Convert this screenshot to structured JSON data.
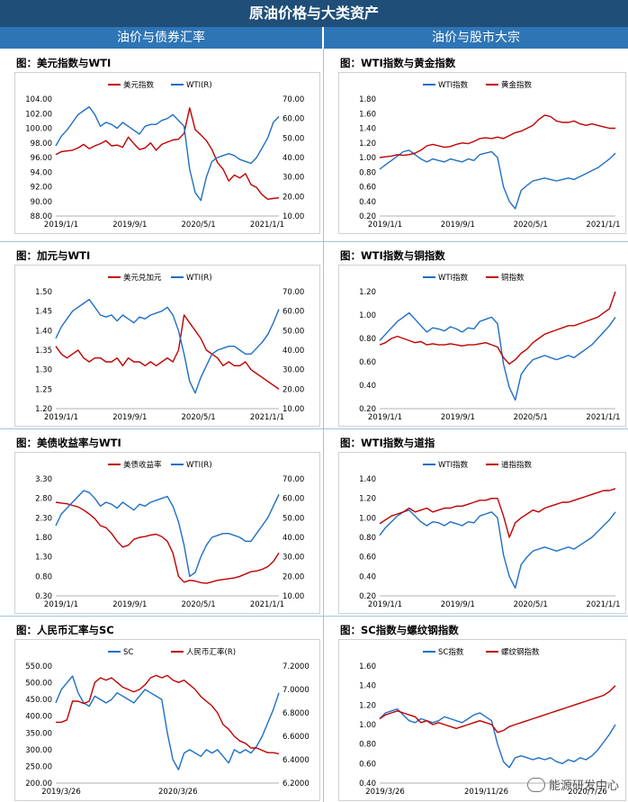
{
  "banner": "原油价格与大类资产",
  "sub_left": "油价与债券汇率",
  "sub_right": "油价与股市大宗",
  "watermark": "能源研发中心",
  "colors": {
    "blue": "#1f6fc5",
    "red": "#c00000"
  },
  "chart_data": [
    {
      "id": "c1",
      "type": "line",
      "title": "图：美元指数与WTI",
      "legend": [
        "美元指数",
        "WTI(R)"
      ],
      "left_ticks": [
        "104.00",
        "102.00",
        "100.00",
        "98.00",
        "96.00",
        "94.00",
        "92.00",
        "90.00",
        "88.00"
      ],
      "right_ticks": [
        "70.00",
        "60.00",
        "50.00",
        "40.00",
        "30.00",
        "20.00",
        "10.00"
      ],
      "x_ticks": [
        "2019/1/1",
        "2019/9/1",
        "2020/5/1",
        "2021/1/1"
      ],
      "ylim": [
        88,
        104
      ],
      "y2lim": [
        10,
        70
      ],
      "series": [
        {
          "name": "美元指数",
          "axis": "left",
          "color": "red",
          "values": [
            96.4,
            96.8,
            96.9,
            97.0,
            97.3,
            97.8,
            97.2,
            97.6,
            97.9,
            98.3,
            97.6,
            97.7,
            97.4,
            98.8,
            97.9,
            97.1,
            97.3,
            98.0,
            97.0,
            97.8,
            98.1,
            98.4,
            98.5,
            99.3,
            102.8,
            99.8,
            99.1,
            98.3,
            97.1,
            95.3,
            94.4,
            92.8,
            93.6,
            93.2,
            93.8,
            92.3,
            91.9,
            90.9,
            90.3,
            90.4,
            90.5
          ]
        },
        {
          "name": "WTI(R)",
          "axis": "right",
          "color": "blue",
          "values": [
            46,
            51,
            54,
            58,
            62,
            64,
            66,
            62,
            56,
            58,
            57,
            55,
            58,
            56,
            54,
            52,
            56,
            57,
            57,
            59,
            60,
            62,
            59,
            56,
            34,
            22,
            18,
            30,
            38,
            40,
            41,
            42,
            41,
            39,
            38,
            37,
            40,
            45,
            50,
            58,
            61
          ]
        }
      ]
    },
    {
      "id": "c2",
      "type": "line",
      "title": "图：WTI指数与黄金指数",
      "legend": [
        "WTI指数",
        "黄金指数"
      ],
      "left_ticks": [
        "1.80",
        "1.60",
        "1.40",
        "1.20",
        "1.00",
        "0.80",
        "0.60",
        "0.40",
        "0.20"
      ],
      "right_ticks": [],
      "x_ticks": [
        "2019/1/1",
        "2019/9/1",
        "2020/5/1",
        "2021/1/1"
      ],
      "ylim": [
        0.2,
        1.8
      ],
      "y2lim": null,
      "series": [
        {
          "name": "WTI指数",
          "axis": "left",
          "color": "blue",
          "values": [
            0.84,
            0.9,
            0.96,
            1.02,
            1.08,
            1.1,
            1.04,
            0.98,
            0.94,
            0.98,
            0.96,
            0.94,
            0.98,
            0.96,
            0.94,
            0.98,
            0.96,
            1.04,
            1.06,
            1.08,
            1.0,
            0.6,
            0.4,
            0.3,
            0.55,
            0.62,
            0.68,
            0.7,
            0.72,
            0.7,
            0.68,
            0.7,
            0.72,
            0.7,
            0.74,
            0.78,
            0.82,
            0.86,
            0.92,
            0.98,
            1.06
          ]
        },
        {
          "name": "黄金指数",
          "axis": "left",
          "color": "red",
          "values": [
            1.0,
            1.01,
            1.02,
            1.04,
            1.03,
            1.04,
            1.06,
            1.1,
            1.16,
            1.18,
            1.16,
            1.14,
            1.15,
            1.18,
            1.2,
            1.19,
            1.22,
            1.26,
            1.27,
            1.26,
            1.28,
            1.26,
            1.3,
            1.34,
            1.36,
            1.4,
            1.44,
            1.52,
            1.58,
            1.56,
            1.5,
            1.48,
            1.48,
            1.5,
            1.46,
            1.44,
            1.46,
            1.44,
            1.42,
            1.4,
            1.4
          ]
        }
      ]
    },
    {
      "id": "c3",
      "type": "line",
      "title": "图：加元与WTI",
      "legend": [
        "美元兑加元",
        "WTI(R)"
      ],
      "left_ticks": [
        "1.50",
        "1.45",
        "1.40",
        "1.35",
        "1.30",
        "1.25",
        "1.20"
      ],
      "right_ticks": [
        "70.00",
        "60.00",
        "50.00",
        "40.00",
        "30.00",
        "20.00",
        "10.00"
      ],
      "x_ticks": [
        "2019/1/1",
        "2019/9/1",
        "2020/5/1",
        "2021/1/1"
      ],
      "ylim": [
        1.2,
        1.5
      ],
      "y2lim": [
        10,
        70
      ],
      "series": [
        {
          "name": "美元兑加元",
          "axis": "left",
          "color": "red",
          "values": [
            1.36,
            1.34,
            1.33,
            1.34,
            1.35,
            1.33,
            1.32,
            1.33,
            1.33,
            1.32,
            1.32,
            1.33,
            1.31,
            1.33,
            1.32,
            1.32,
            1.31,
            1.32,
            1.31,
            1.32,
            1.33,
            1.32,
            1.35,
            1.44,
            1.42,
            1.4,
            1.38,
            1.35,
            1.34,
            1.33,
            1.31,
            1.32,
            1.31,
            1.31,
            1.32,
            1.3,
            1.29,
            1.28,
            1.27,
            1.26,
            1.25
          ]
        },
        {
          "name": "WTI(R)",
          "axis": "right",
          "color": "blue",
          "values": [
            46,
            52,
            56,
            60,
            62,
            64,
            66,
            62,
            58,
            57,
            58,
            55,
            58,
            56,
            54,
            57,
            56,
            58,
            59,
            60,
            62,
            58,
            50,
            38,
            24,
            18,
            26,
            32,
            38,
            40,
            41,
            42,
            42,
            40,
            38,
            38,
            41,
            44,
            48,
            54,
            61
          ]
        }
      ]
    },
    {
      "id": "c4",
      "type": "line",
      "title": "图：WTI指数与铜指数",
      "legend": [
        "WTI指数",
        "铜指数"
      ],
      "left_ticks": [
        "1.20",
        "1.00",
        "0.80",
        "0.60",
        "0.40",
        "0.20"
      ],
      "right_ticks": [],
      "x_ticks": [
        "2019/1/1",
        "2019/9/1",
        "2020/5/1",
        "2021/1/1"
      ],
      "ylim": [
        0.2,
        1.3
      ],
      "y2lim": null,
      "series": [
        {
          "name": "WTI指数",
          "axis": "left",
          "color": "blue",
          "values": [
            0.84,
            0.9,
            0.96,
            1.02,
            1.06,
            1.1,
            1.04,
            0.98,
            0.92,
            0.96,
            0.95,
            0.93,
            0.97,
            0.95,
            0.92,
            0.96,
            0.95,
            1.02,
            1.04,
            1.06,
            1.0,
            0.62,
            0.4,
            0.28,
            0.52,
            0.6,
            0.66,
            0.68,
            0.7,
            0.68,
            0.66,
            0.68,
            0.7,
            0.68,
            0.72,
            0.76,
            0.8,
            0.86,
            0.92,
            0.98,
            1.06
          ]
        },
        {
          "name": "铜指数",
          "axis": "left",
          "color": "red",
          "values": [
            0.8,
            0.82,
            0.86,
            0.88,
            0.86,
            0.84,
            0.82,
            0.83,
            0.8,
            0.81,
            0.8,
            0.8,
            0.81,
            0.8,
            0.79,
            0.8,
            0.8,
            0.81,
            0.82,
            0.8,
            0.78,
            0.68,
            0.62,
            0.66,
            0.72,
            0.76,
            0.82,
            0.86,
            0.9,
            0.92,
            0.94,
            0.96,
            0.98,
            0.98,
            1.0,
            1.02,
            1.04,
            1.06,
            1.1,
            1.14,
            1.3
          ]
        }
      ]
    },
    {
      "id": "c5",
      "type": "line",
      "title": "图：美债收益率与WTI",
      "legend": [
        "美债收益率",
        "WTI(R)"
      ],
      "left_ticks": [
        "3.30",
        "2.80",
        "2.30",
        "1.80",
        "1.30",
        "0.80",
        "0.30"
      ],
      "right_ticks": [
        "70.00",
        "60.00",
        "50.00",
        "40.00",
        "30.00",
        "20.00",
        "10.00"
      ],
      "x_ticks": [
        "2019/1/1",
        "2019/9/1",
        "2020/5/1",
        "2021/1/1"
      ],
      "ylim": [
        0.3,
        3.3
      ],
      "y2lim": [
        10,
        70
      ],
      "series": [
        {
          "name": "美债收益率",
          "axis": "left",
          "color": "red",
          "values": [
            2.7,
            2.68,
            2.66,
            2.62,
            2.58,
            2.5,
            2.4,
            2.28,
            2.1,
            2.05,
            1.9,
            1.7,
            1.55,
            1.6,
            1.75,
            1.8,
            1.82,
            1.86,
            1.88,
            1.82,
            1.7,
            1.4,
            0.8,
            0.65,
            0.7,
            0.68,
            0.64,
            0.62,
            0.66,
            0.7,
            0.72,
            0.74,
            0.76,
            0.8,
            0.86,
            0.92,
            0.94,
            0.98,
            1.05,
            1.18,
            1.4
          ]
        },
        {
          "name": "WTI(R)",
          "axis": "right",
          "color": "blue",
          "values": [
            46,
            52,
            55,
            58,
            61,
            64,
            63,
            60,
            56,
            58,
            57,
            55,
            58,
            56,
            54,
            57,
            56,
            58,
            59,
            60,
            61,
            56,
            48,
            36,
            20,
            22,
            30,
            36,
            40,
            41,
            42,
            42,
            41,
            40,
            38,
            38,
            42,
            46,
            50,
            56,
            62
          ]
        }
      ]
    },
    {
      "id": "c6",
      "type": "line",
      "title": "图：WTI指数与道指",
      "legend": [
        "WTI指数",
        "道指指数"
      ],
      "left_ticks": [
        "1.40",
        "1.20",
        "1.00",
        "0.80",
        "0.60",
        "0.40",
        "0.20"
      ],
      "right_ticks": [],
      "x_ticks": [
        "2019/1/1",
        "2019/9/1",
        "2020/5/1",
        "2021/1/1"
      ],
      "ylim": [
        0.2,
        1.4
      ],
      "y2lim": null,
      "series": [
        {
          "name": "WTI指数",
          "axis": "left",
          "color": "blue",
          "values": [
            0.82,
            0.9,
            0.96,
            1.02,
            1.06,
            1.08,
            1.02,
            0.96,
            0.92,
            0.96,
            0.95,
            0.92,
            0.96,
            0.94,
            0.92,
            0.96,
            0.95,
            1.02,
            1.04,
            1.06,
            1.0,
            0.62,
            0.4,
            0.28,
            0.52,
            0.6,
            0.66,
            0.68,
            0.7,
            0.68,
            0.66,
            0.68,
            0.7,
            0.68,
            0.72,
            0.76,
            0.8,
            0.86,
            0.92,
            0.98,
            1.06
          ]
        },
        {
          "name": "道指指数",
          "axis": "left",
          "color": "red",
          "values": [
            0.94,
            0.98,
            1.02,
            1.04,
            1.06,
            1.1,
            1.06,
            1.08,
            1.1,
            1.06,
            1.08,
            1.1,
            1.1,
            1.12,
            1.12,
            1.14,
            1.16,
            1.18,
            1.18,
            1.2,
            1.2,
            1.02,
            0.8,
            0.95,
            1.0,
            1.04,
            1.08,
            1.06,
            1.1,
            1.12,
            1.14,
            1.16,
            1.16,
            1.18,
            1.2,
            1.22,
            1.24,
            1.26,
            1.28,
            1.28,
            1.3
          ]
        }
      ]
    },
    {
      "id": "c7",
      "type": "line",
      "title": "图：人民币汇率与SC",
      "legend": [
        "SC",
        "人民币汇率(R)"
      ],
      "left_ticks": [
        "550.00",
        "500.00",
        "450.00",
        "400.00",
        "350.00",
        "300.00",
        "250.00",
        "200.00"
      ],
      "right_ticks": [
        "7.2000",
        "7.0000",
        "6.8000",
        "6.6000",
        "6.4000",
        "6.2000"
      ],
      "x_ticks": [
        "2019/3/26",
        "2020/3/26"
      ],
      "ylim": [
        200,
        550
      ],
      "y2lim": [
        6.2,
        7.2
      ],
      "series": [
        {
          "name": "SC",
          "axis": "left",
          "color": "blue",
          "values": [
            440,
            480,
            500,
            520,
            470,
            440,
            430,
            460,
            450,
            440,
            450,
            470,
            460,
            450,
            440,
            460,
            480,
            470,
            460,
            450,
            350,
            270,
            240,
            290,
            300,
            290,
            280,
            300,
            290,
            300,
            280,
            260,
            300,
            290,
            300,
            290,
            310,
            340,
            380,
            420,
            470
          ]
        },
        {
          "name": "人民币汇率(R)",
          "axis": "right",
          "color": "red",
          "values": [
            6.72,
            6.72,
            6.74,
            6.9,
            6.9,
            6.88,
            6.9,
            7.06,
            7.1,
            7.08,
            7.1,
            7.06,
            7.02,
            7.0,
            6.98,
            7.0,
            7.04,
            7.1,
            7.12,
            7.1,
            7.12,
            7.08,
            7.06,
            7.08,
            7.04,
            7.0,
            6.94,
            6.9,
            6.86,
            6.8,
            6.7,
            6.66,
            6.6,
            6.56,
            6.54,
            6.5,
            6.5,
            6.48,
            6.46,
            6.46,
            6.45
          ]
        }
      ]
    },
    {
      "id": "c8",
      "type": "line",
      "title": "图：SC指数与螺纹钢指数",
      "legend": [
        "SC指数",
        "螺纹钢指数"
      ],
      "left_ticks": [
        "1.60",
        "1.40",
        "1.20",
        "1.00",
        "0.80",
        "0.60",
        "0.40"
      ],
      "right_ticks": [],
      "x_ticks": [
        "2019/3/26",
        "2019/11/26",
        "2020/7/26"
      ],
      "ylim": [
        0.4,
        1.6
      ],
      "y2lim": null,
      "series": [
        {
          "name": "SC指数",
          "axis": "left",
          "color": "blue",
          "values": [
            1.06,
            1.12,
            1.14,
            1.16,
            1.1,
            1.04,
            1.02,
            1.06,
            1.04,
            1.02,
            1.04,
            1.08,
            1.06,
            1.04,
            1.02,
            1.06,
            1.1,
            1.12,
            1.08,
            1.04,
            0.8,
            0.62,
            0.56,
            0.66,
            0.68,
            0.66,
            0.64,
            0.66,
            0.64,
            0.66,
            0.62,
            0.6,
            0.64,
            0.62,
            0.66,
            0.64,
            0.68,
            0.74,
            0.82,
            0.9,
            1.0
          ]
        },
        {
          "name": "螺纹钢指数",
          "axis": "left",
          "color": "red",
          "values": [
            1.06,
            1.1,
            1.12,
            1.14,
            1.12,
            1.1,
            1.08,
            1.02,
            1.04,
            1.0,
            1.02,
            1.0,
            0.98,
            0.96,
            0.98,
            1.0,
            1.02,
            1.04,
            1.02,
            1.0,
            0.92,
            0.94,
            0.98,
            1.0,
            1.02,
            1.04,
            1.06,
            1.08,
            1.1,
            1.12,
            1.14,
            1.16,
            1.18,
            1.2,
            1.22,
            1.24,
            1.26,
            1.28,
            1.3,
            1.34,
            1.4
          ]
        }
      ]
    }
  ]
}
